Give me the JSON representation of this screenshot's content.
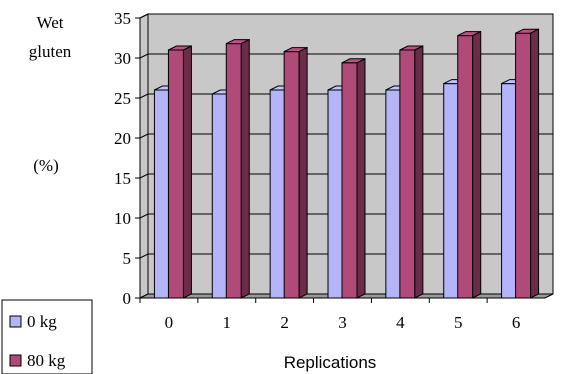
{
  "chart_data": {
    "type": "bar",
    "style": "3d-clustered-column",
    "title": "",
    "ylabel_lines": [
      "Wet",
      "gluten"
    ],
    "ylabel_unit": "(%)",
    "xlabel": "Replications",
    "categories": [
      "0",
      "1",
      "2",
      "3",
      "4",
      "5",
      "6"
    ],
    "ylim": [
      0,
      35
    ],
    "yticks": [
      "0",
      "5",
      "10",
      "15",
      "20",
      "25",
      "30",
      "35"
    ],
    "grid": true,
    "legend_position": "bottom-left",
    "series": [
      {
        "name": "0 kg",
        "color": "#b4b4f8",
        "values": [
          26,
          25.5,
          26,
          26,
          26,
          26.8,
          26.8
        ]
      },
      {
        "name": "80 kg",
        "color": "#b04a78",
        "values": [
          31,
          31.8,
          30.8,
          29.4,
          31,
          32.8,
          33.1
        ]
      }
    ],
    "colors": {
      "wall": "#c8c8c8",
      "grid": "#000000"
    }
  }
}
